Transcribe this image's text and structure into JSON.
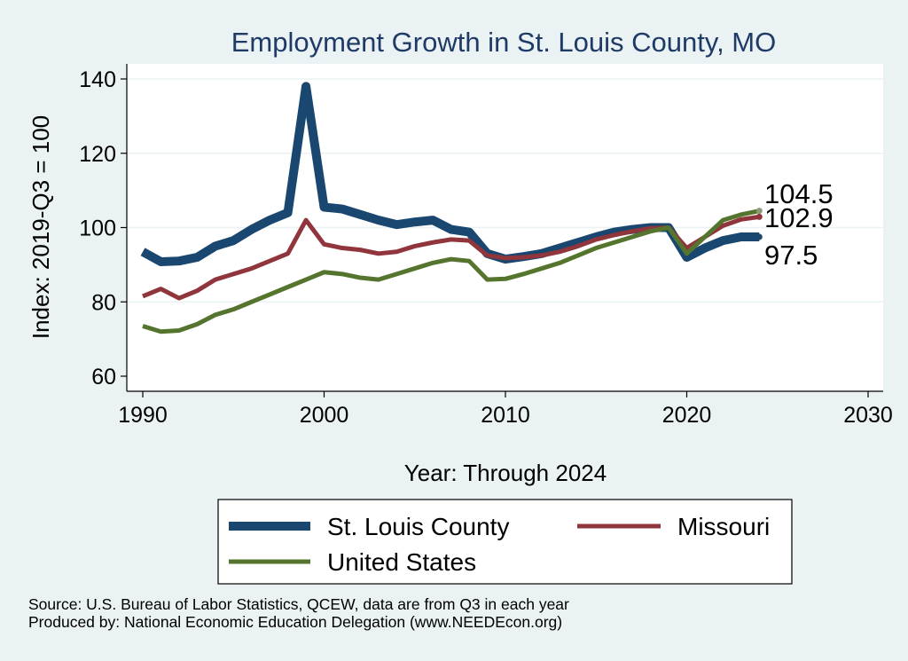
{
  "chart_data": {
    "type": "line",
    "title": "Employment Growth in St. Louis County, MO",
    "xlabel": "Year: Through 2024",
    "ylabel": "Index: 2019-Q3 = 100",
    "xlim": [
      1990,
      2030
    ],
    "ylim": [
      60,
      140
    ],
    "x_ticks": [
      1990,
      2000,
      2010,
      2020,
      2030
    ],
    "y_ticks": [
      60,
      80,
      100,
      120,
      140
    ],
    "grid": true,
    "legend_position": "bottom",
    "x": [
      1990,
      1991,
      1992,
      1993,
      1994,
      1995,
      1996,
      1997,
      1998,
      1999,
      2000,
      2001,
      2002,
      2003,
      2004,
      2005,
      2006,
      2007,
      2008,
      2009,
      2010,
      2011,
      2012,
      2013,
      2014,
      2015,
      2016,
      2017,
      2018,
      2019,
      2020,
      2021,
      2022,
      2023,
      2024
    ],
    "series": [
      {
        "name": "St. Louis  County",
        "color": "#1a476f",
        "values": [
          93.5,
          90.8,
          91.0,
          92.0,
          95.0,
          96.5,
          99.5,
          102.0,
          104.0,
          138.0,
          105.5,
          105.0,
          103.5,
          102.0,
          100.8,
          101.5,
          102.0,
          99.5,
          98.8,
          93.0,
          91.5,
          92.2,
          93.0,
          94.5,
          96.0,
          97.5,
          98.8,
          99.5,
          100.0,
          100.0,
          92.0,
          94.5,
          96.5,
          97.5,
          97.5
        ],
        "end_label": "97.5"
      },
      {
        "name": "Missouri",
        "color": "#90353b",
        "values": [
          81.5,
          83.5,
          81.0,
          83.0,
          86.0,
          87.5,
          89.0,
          91.0,
          93.0,
          102.0,
          95.5,
          94.5,
          94.0,
          93.0,
          93.5,
          95.0,
          96.0,
          96.8,
          96.5,
          92.5,
          91.8,
          92.0,
          92.5,
          93.5,
          95.0,
          96.8,
          98.0,
          99.0,
          99.8,
          100.0,
          94.5,
          97.5,
          100.5,
          102.2,
          102.9
        ],
        "end_label": "102.9"
      },
      {
        "name": "United States",
        "color": "#55752f",
        "values": [
          73.5,
          72.0,
          72.3,
          74.0,
          76.5,
          78.0,
          80.0,
          82.0,
          84.0,
          86.0,
          88.0,
          87.5,
          86.5,
          86.0,
          87.5,
          89.0,
          90.5,
          91.5,
          91.0,
          86.0,
          86.2,
          87.5,
          89.0,
          90.5,
          92.5,
          94.5,
          96.0,
          97.5,
          99.0,
          100.0,
          93.0,
          97.5,
          102.0,
          103.5,
          104.5
        ],
        "end_label": "104.5"
      }
    ]
  },
  "footer": {
    "source": "Source: U.S. Bureau of Labor Statistics, QCEW, data are from Q3 in each year",
    "produced_by": "Produced by: National Economic Education Delegation (www.NEEDEcon.org)"
  }
}
